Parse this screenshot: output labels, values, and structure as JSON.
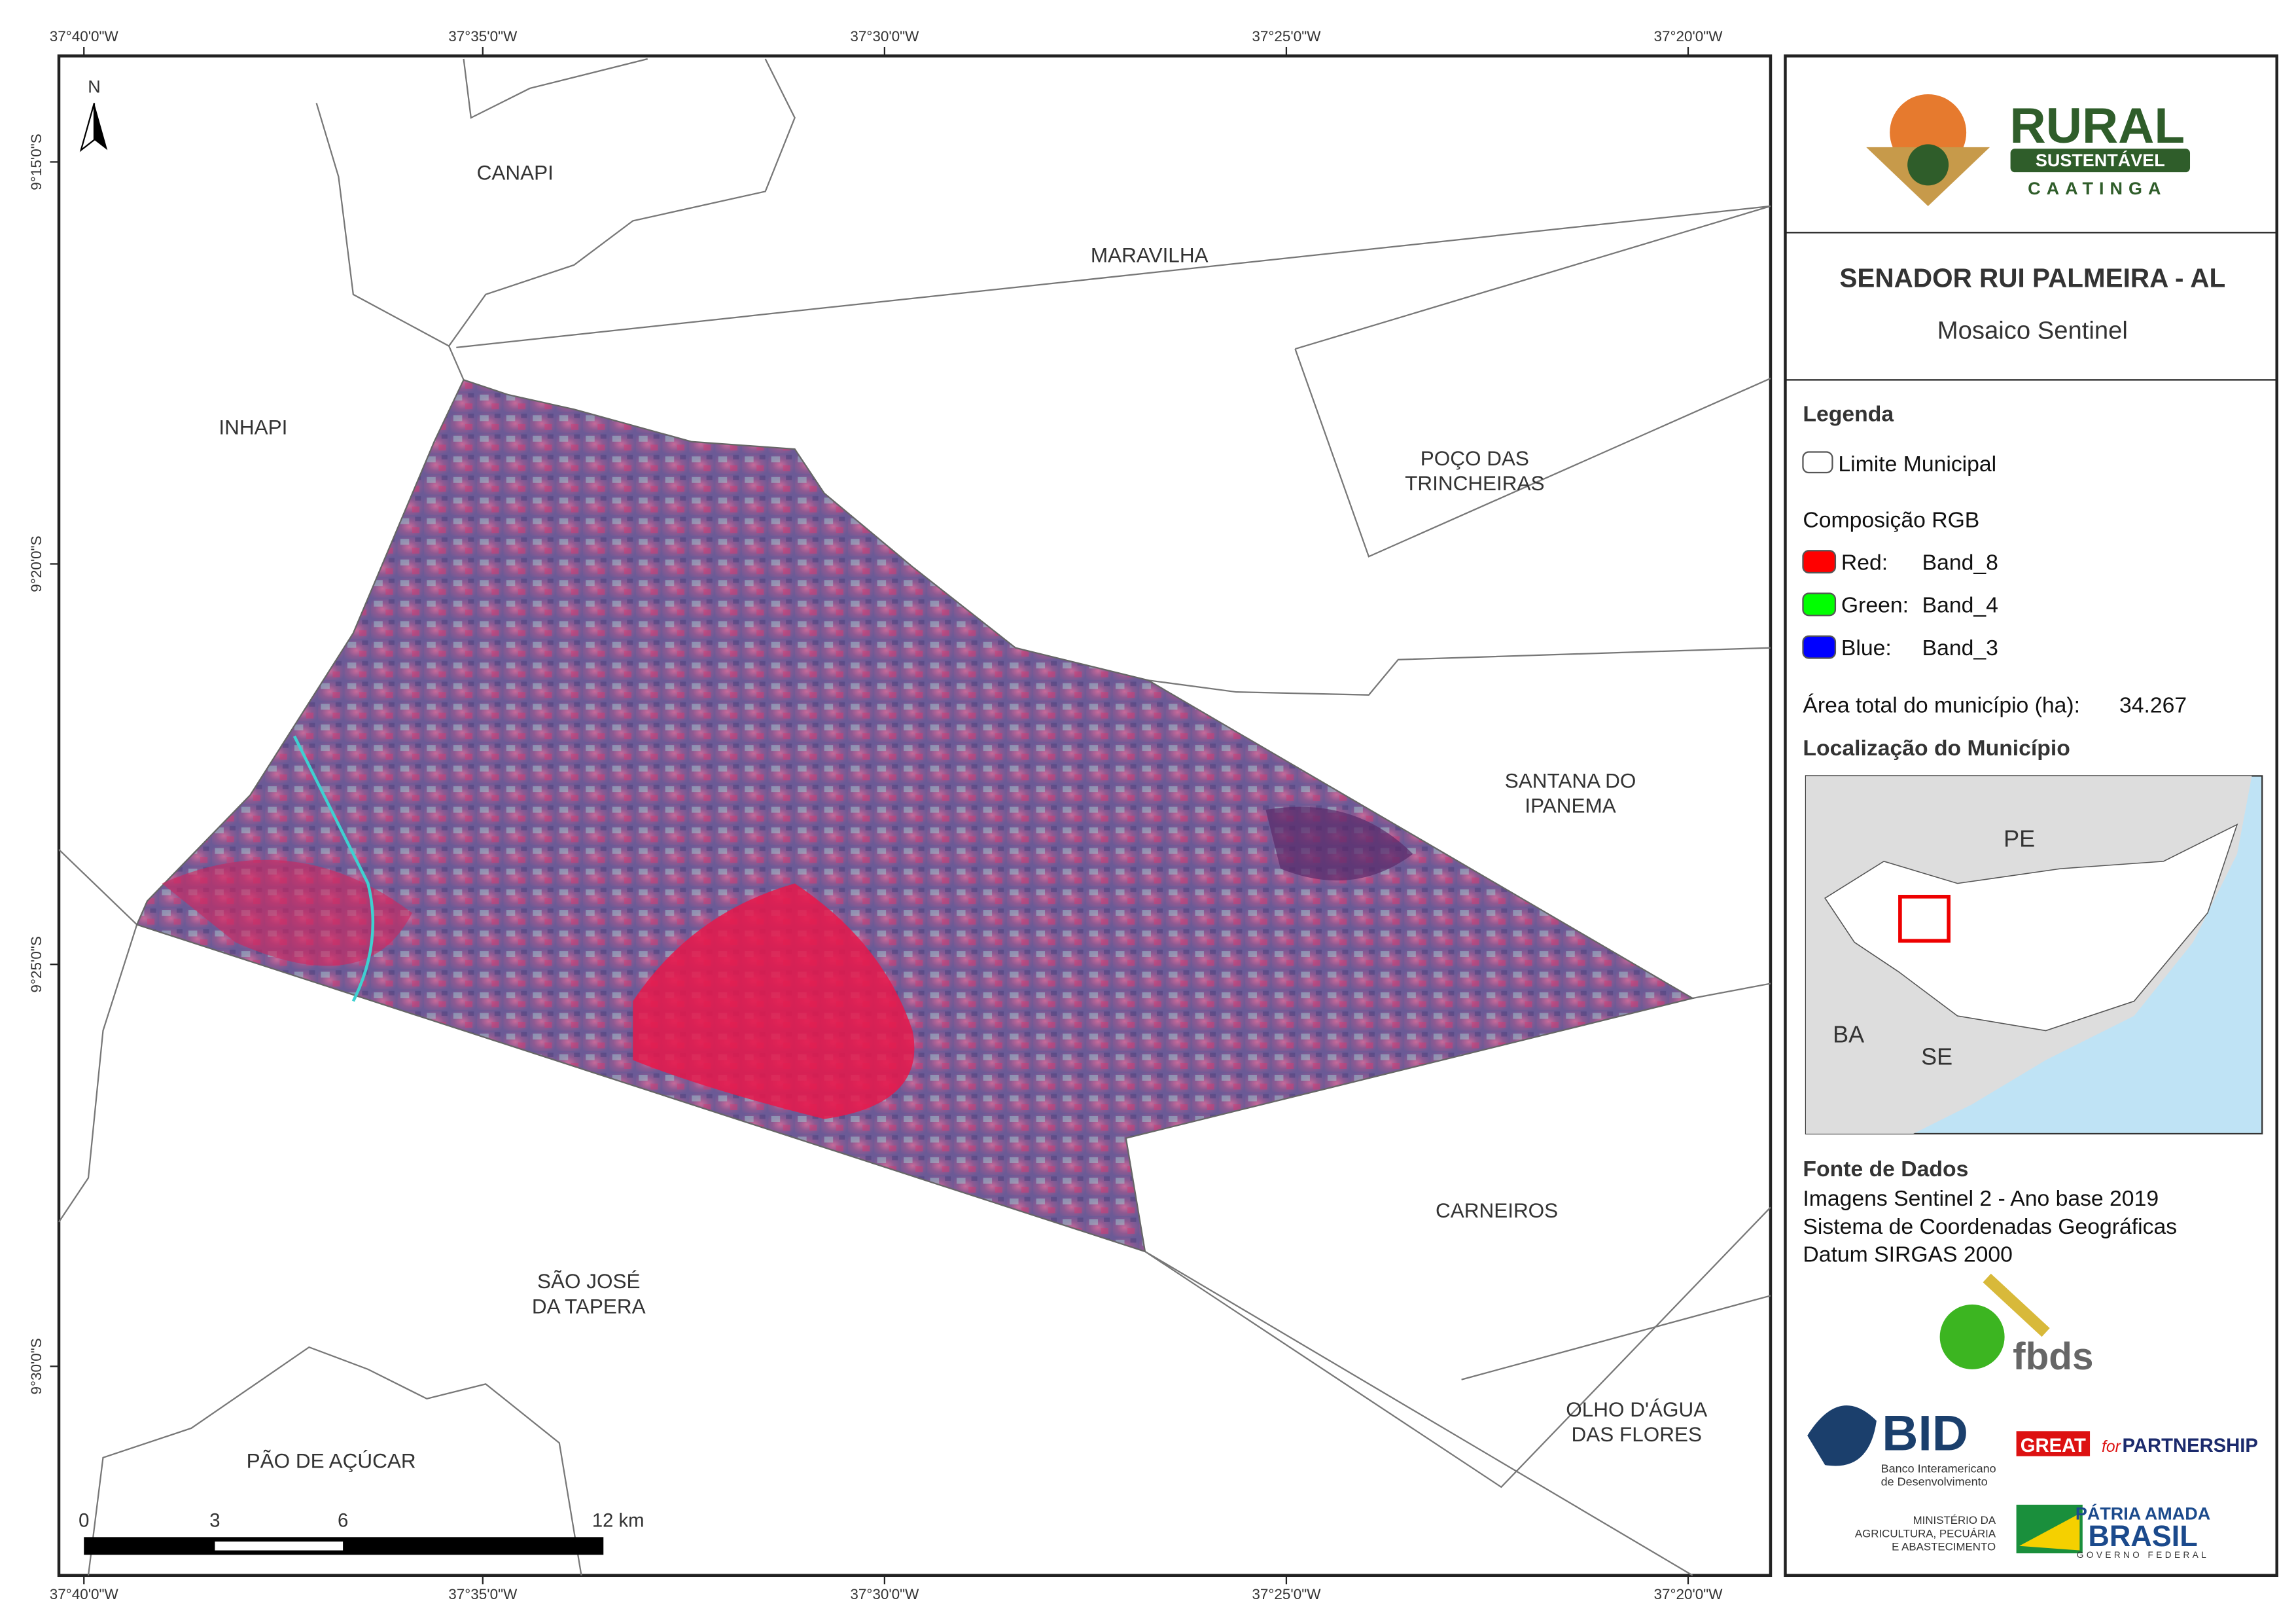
{
  "map": {
    "top_ticks": [
      "37°40'0\"W",
      "37°35'0\"W",
      "37°30'0\"W",
      "37°25'0\"W",
      "37°20'0\"W"
    ],
    "bottom_ticks": [
      "37°40'0\"W",
      "37°35'0\"W",
      "37°30'0\"W",
      "37°25'0\"W",
      "37°20'0\"W"
    ],
    "left_ticks": [
      "9°15'0\"S",
      "9°20'0\"S",
      "9°25'0\"S",
      "9°30'0\"S"
    ],
    "north": "N",
    "municipalities": [
      {
        "lines": [
          "CANAPI"
        ]
      },
      {
        "lines": [
          "MARAVILHA"
        ]
      },
      {
        "lines": [
          "INHAPI"
        ]
      },
      {
        "lines": [
          "POÇO DAS",
          "TRINCHEIRAS"
        ]
      },
      {
        "lines": [
          "SANTANA DO",
          "IPANEMA"
        ]
      },
      {
        "lines": [
          "CARNEIROS"
        ]
      },
      {
        "lines": [
          "SÃO JOSÉ",
          "DA TAPERA"
        ]
      },
      {
        "lines": [
          "OLHO D'ÁGUA",
          "DAS FLORES"
        ]
      },
      {
        "lines": [
          "PÃO DE AÇÚCAR"
        ]
      }
    ],
    "scale_labels": [
      "0",
      "3",
      "6",
      "12 km"
    ]
  },
  "panel": {
    "logo": {
      "name": "RURAL",
      "band": "SUSTENTÁVEL",
      "sub": "CAATINGA"
    },
    "title": "SENADOR RUI PALMEIRA - AL",
    "subtitle": "Mosaico Sentinel",
    "legend": {
      "heading": "Legenda",
      "boundary": "Limite Municipal",
      "composition": "Composição RGB",
      "bands": [
        {
          "channel": "Red:",
          "band": "Band_8"
        },
        {
          "channel": "Green:",
          "band": "Band_4"
        },
        {
          "channel": "Blue:",
          "band": "Band_3"
        }
      ],
      "area_label": "Área total do município (ha):",
      "area_value": "34.267"
    },
    "location": {
      "heading": "Localização do Município",
      "states": [
        "PE",
        "BA",
        "SE"
      ]
    },
    "sources": {
      "heading": "Fonte de Dados",
      "lines": [
        "Imagens Sentinel 2 - Ano base 2019",
        "Sistema de Coordenadas Geográficas",
        "Datum SIRGAS 2000"
      ]
    },
    "partners": {
      "fbds": "fbds",
      "bid": "BID",
      "bid_sub": [
        "Banco Interamericano",
        "de Desenvolvimento"
      ],
      "great": "GREAT",
      "great_for": "for",
      "partnership": "PARTNERSHIP",
      "ministry": [
        "MINISTÉRIO DA",
        "AGRICULTURA, PECUÁRIA",
        "E ABASTECIMENTO"
      ],
      "patria": "PÁTRIA AMADA",
      "brasil": "BRASIL",
      "gov": "GOVERNO FEDERAL"
    }
  }
}
